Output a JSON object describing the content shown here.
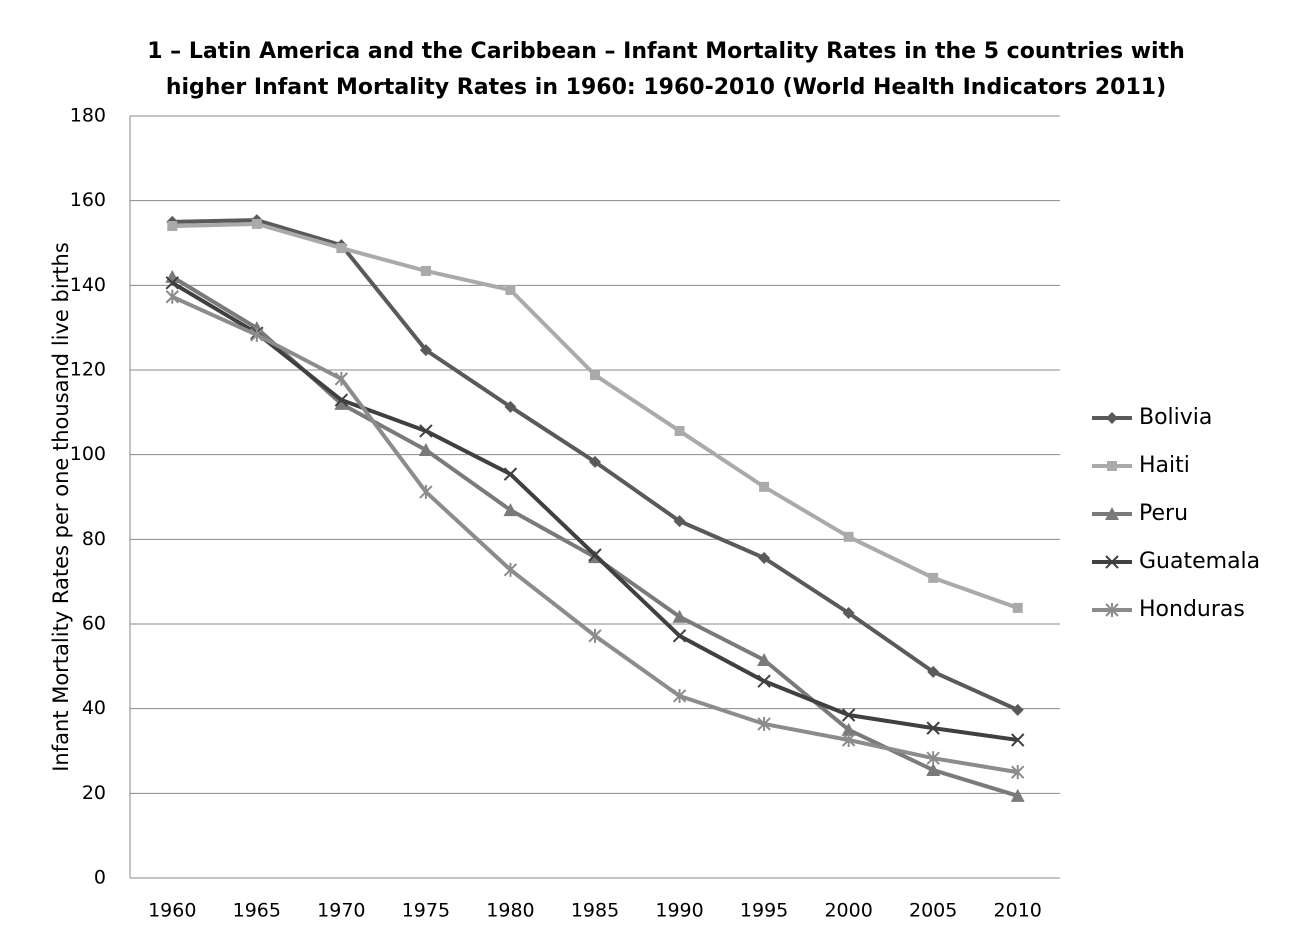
{
  "chart_data": {
    "type": "line",
    "title": "1 – Latin America and the Caribbean – Infant Mortality Rates in the 5 countries with higher Infant Mortality Rates in 1960: 1960-2010 (World Health Indicators 2011)",
    "y_label": "Infant Mortality Rates per one thousand live births",
    "categories": [
      "1960",
      "1965",
      "1970",
      "1975",
      "1980",
      "1985",
      "1990",
      "1995",
      "2000",
      "2005",
      "2010"
    ],
    "series": [
      {
        "name": "Bolivia",
        "color": "#5a5a5a",
        "marker": "diamond",
        "values": [
          155,
          155.4,
          149.5,
          124.7,
          111.3,
          98.3,
          84.3,
          75.6,
          62.6,
          48.7,
          39.7
        ]
      },
      {
        "name": "Haiti",
        "color": "#aaaaaa",
        "marker": "square",
        "values": [
          154,
          154.5,
          148.8,
          143.4,
          138.9,
          118.8,
          105.6,
          92.4,
          80.6,
          70.9,
          63.8
        ]
      },
      {
        "name": "Peru",
        "color": "#7a7a7a",
        "marker": "triangle",
        "values": [
          142,
          129.9,
          112,
          101.1,
          86.9,
          75.8,
          61.7,
          51.5,
          35,
          25.5,
          19.4
        ]
      },
      {
        "name": "Guatemala",
        "color": "#404040",
        "marker": "x",
        "values": [
          140.6,
          128.7,
          112.9,
          105.6,
          95.4,
          76.3,
          57.2,
          46.5,
          38.5,
          35.4,
          32.6
        ]
      },
      {
        "name": "Honduras",
        "color": "#8c8c8c",
        "marker": "star",
        "values": [
          137.3,
          128.3,
          117.9,
          91.2,
          72.8,
          57.2,
          43,
          36.4,
          32.6,
          28.3,
          25
        ]
      }
    ],
    "ylim": [
      0,
      180
    ],
    "yticks": [
      0,
      20,
      40,
      60,
      80,
      100,
      120,
      140,
      160,
      180
    ],
    "grid": true
  }
}
